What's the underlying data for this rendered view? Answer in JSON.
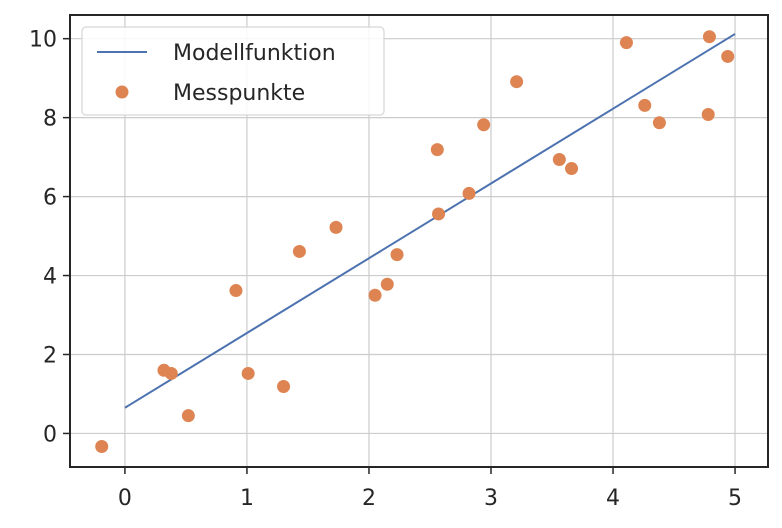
{
  "chart_data": {
    "type": "scatter",
    "title": "",
    "xlabel": "",
    "ylabel": "",
    "xlim": [
      -0.45,
      5.27
    ],
    "ylim": [
      -0.85,
      10.6
    ],
    "xticks": [
      0,
      1,
      2,
      3,
      4,
      5
    ],
    "yticks": [
      0,
      2,
      4,
      6,
      8,
      10
    ],
    "xtick_labels": [
      "0",
      "1",
      "2",
      "3",
      "4",
      "5"
    ],
    "ytick_labels": [
      "0",
      "2",
      "4",
      "6",
      "8",
      "10"
    ],
    "grid": true,
    "legend_position": "top-left",
    "series": [
      {
        "name": "Modellfunktion",
        "kind": "line",
        "color": "#4c72b0",
        "x": [
          0,
          5
        ],
        "y": [
          0.65,
          10.12
        ]
      },
      {
        "name": "Messpunkte",
        "kind": "scatter",
        "color": "#dd8452",
        "x": [
          -0.19,
          0.32,
          0.38,
          0.52,
          0.91,
          1.01,
          1.3,
          1.43,
          1.73,
          2.05,
          2.15,
          2.23,
          2.56,
          2.57,
          2.82,
          2.94,
          3.21,
          3.56,
          3.66,
          4.11,
          4.26,
          4.38,
          4.78,
          4.79,
          4.94
        ],
        "y": [
          -0.33,
          1.6,
          1.52,
          0.45,
          3.62,
          1.52,
          1.19,
          4.61,
          5.22,
          3.5,
          3.78,
          4.53,
          7.19,
          5.56,
          6.08,
          7.82,
          8.91,
          6.94,
          6.71,
          9.9,
          8.31,
          7.87,
          8.08,
          10.05,
          9.55
        ]
      }
    ]
  }
}
